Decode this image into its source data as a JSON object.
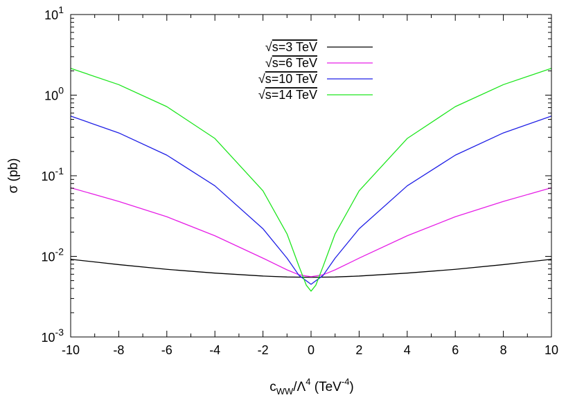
{
  "chart_data": {
    "type": "line",
    "title": "",
    "xlabel": {
      "base": "c",
      "sub": "WW",
      "mid": "/Λ",
      "sup": "4",
      "unit_prefix": " (TeV",
      "unit_sup": "-4",
      "unit_suffix": ")"
    },
    "ylabel": "σ (pb)",
    "xlim": [
      -10,
      10
    ],
    "ylim": [
      0.001,
      10
    ],
    "yscale": "log",
    "grid": false,
    "legend_position": "top-center",
    "x_ticks": [
      {
        "value": -10,
        "label": "-10"
      },
      {
        "value": -8,
        "label": "-8"
      },
      {
        "value": -6,
        "label": "-6"
      },
      {
        "value": -4,
        "label": "-4"
      },
      {
        "value": -2,
        "label": "-2"
      },
      {
        "value": 0,
        "label": "0"
      },
      {
        "value": 2,
        "label": "2"
      },
      {
        "value": 4,
        "label": "4"
      },
      {
        "value": 6,
        "label": "6"
      },
      {
        "value": 8,
        "label": "8"
      },
      {
        "value": 10,
        "label": "10"
      }
    ],
    "y_ticks": [
      {
        "value": 10,
        "base": "10",
        "exp": "1"
      },
      {
        "value": 1,
        "base": "10",
        "exp": "0"
      },
      {
        "value": 0.1,
        "base": "10",
        "exp": "-1"
      },
      {
        "value": 0.01,
        "base": "10",
        "exp": "-2"
      },
      {
        "value": 0.001,
        "base": "10",
        "exp": "-3"
      }
    ],
    "series": [
      {
        "name": "s=3 TeV",
        "legend_root": "√",
        "legend_label": "s=3 TeV",
        "color": "#000000",
        "x": [
          -10,
          -8,
          -6,
          -4,
          -2,
          -1,
          0,
          1,
          2,
          4,
          6,
          8,
          10
        ],
        "y": [
          0.0092,
          0.0079,
          0.0069,
          0.0062,
          0.0057,
          0.00555,
          0.0055,
          0.00555,
          0.0057,
          0.0062,
          0.0069,
          0.0079,
          0.0092
        ]
      },
      {
        "name": "s=6 TeV",
        "legend_root": "√",
        "legend_label": "s=6 TeV",
        "color": "#e61ee6",
        "x": [
          -10,
          -8,
          -6,
          -4,
          -2,
          -1,
          -0.5,
          0,
          0.5,
          1,
          2,
          4,
          6,
          8,
          10
        ],
        "y": [
          0.071,
          0.048,
          0.031,
          0.018,
          0.0095,
          0.0068,
          0.0059,
          0.0056,
          0.0059,
          0.0068,
          0.0095,
          0.018,
          0.031,
          0.048,
          0.071
        ]
      },
      {
        "name": "s=10 TeV",
        "legend_root": "√",
        "legend_label": "s=10 TeV",
        "color": "#1e1ee6",
        "x": [
          -10,
          -8,
          -6,
          -4,
          -2,
          -1,
          -0.5,
          0,
          0.5,
          1,
          2,
          4,
          6,
          8,
          10
        ],
        "y": [
          0.55,
          0.34,
          0.18,
          0.075,
          0.022,
          0.0095,
          0.0058,
          0.0045,
          0.0058,
          0.0095,
          0.022,
          0.075,
          0.18,
          0.34,
          0.55
        ]
      },
      {
        "name": "s=14 TeV",
        "legend_root": "√",
        "legend_label": "s=14 TeV",
        "color": "#1ee61e",
        "x": [
          -10,
          -8,
          -6,
          -4,
          -2,
          -1,
          -0.5,
          -0.2,
          0,
          0.2,
          0.5,
          1,
          2,
          4,
          6,
          8,
          10
        ],
        "y": [
          2.15,
          1.35,
          0.72,
          0.29,
          0.065,
          0.019,
          0.0075,
          0.0044,
          0.0037,
          0.0044,
          0.0075,
          0.019,
          0.065,
          0.29,
          0.72,
          1.35,
          2.15
        ]
      }
    ]
  }
}
